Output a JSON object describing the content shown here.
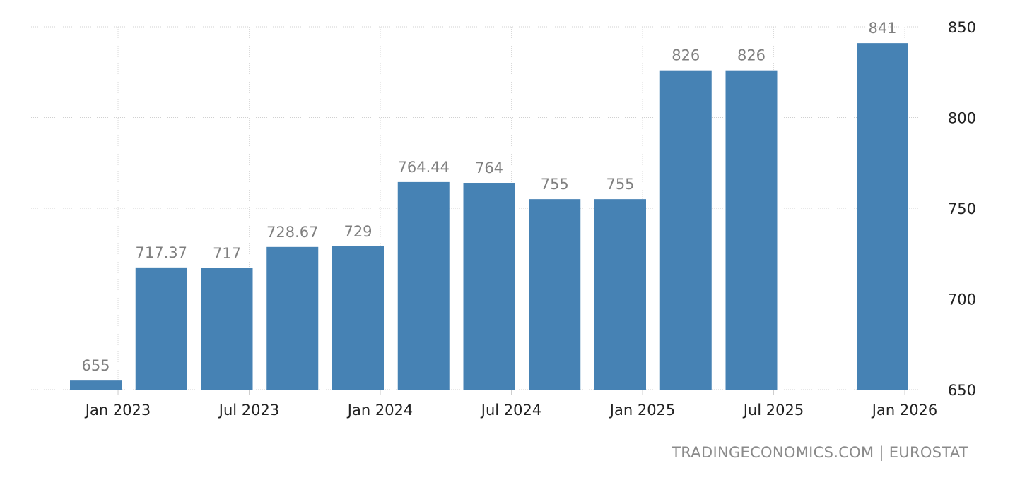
{
  "chart_data": {
    "type": "bar",
    "title": "",
    "xlabel": "",
    "ylabel": "",
    "categories": [
      "2022-Q4",
      "2023-Q1",
      "2023-Q2",
      "2023-Q3",
      "2023-Q4",
      "2024-Q1",
      "2024-Q2",
      "2024-Q3",
      "2024-Q4",
      "2025-Q1",
      "2025-Q2",
      "2025-Q3",
      "2025-Q4"
    ],
    "values": [
      655,
      717.37,
      717,
      728.67,
      729,
      764.44,
      764,
      755,
      755,
      826,
      826,
      null,
      841
    ],
    "data_labels": [
      "655",
      "717.37",
      "717",
      "728.67",
      "729",
      "764.44",
      "764",
      "755",
      "755",
      "826",
      "826",
      "",
      "841"
    ],
    "x_ticks": [
      "Jan 2023",
      "Jul 2023",
      "Jan 2024",
      "Jul 2024",
      "Jan 2025",
      "Jul 2025",
      "Jan 2026"
    ],
    "y_ticks": [
      650,
      700,
      750,
      800,
      850
    ],
    "ylim": [
      650,
      850
    ],
    "y_axis_side": "right",
    "grid": true,
    "bar_color": "#4682b4",
    "label_color": "#7f7f7f"
  },
  "footer": {
    "source": "TRADINGECONOMICS.COM | EUROSTAT"
  }
}
